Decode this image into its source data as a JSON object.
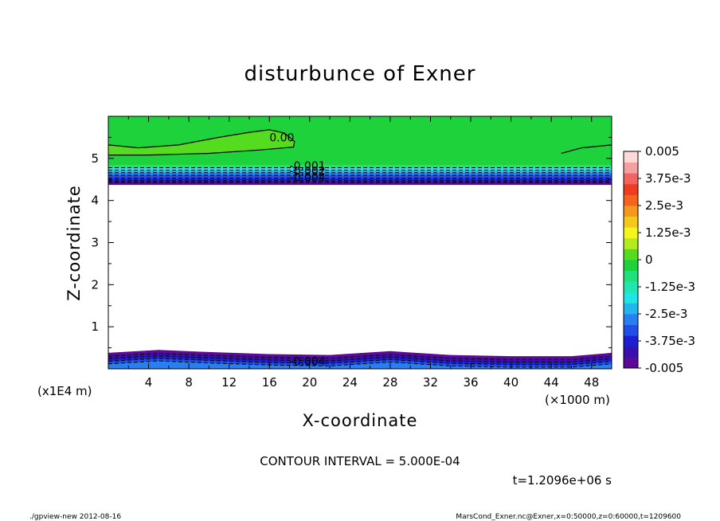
{
  "chart_data": {
    "type": "contour",
    "title": "disturbunce of Exner",
    "xlabel": "X-coordinate",
    "ylabel": "Z-coordinate",
    "x_unit_label": "(×1000 m)",
    "y_unit_label": "(x1E4 m)",
    "x_ticks": [
      "4",
      "8",
      "12",
      "16",
      "20",
      "24",
      "28",
      "32",
      "36",
      "40",
      "44",
      "48"
    ],
    "y_ticks": [
      "1",
      "2",
      "3",
      "4",
      "5"
    ],
    "xlim": [
      0,
      50
    ],
    "ylim": [
      0,
      6
    ],
    "contour_interval_text": "CONTOUR INTERVAL = 5.000E-04",
    "time_text": "t=1.2096e+06 s",
    "contour_labels": [
      {
        "text": "0.00",
        "x": 16,
        "z": 5.5
      },
      {
        "text": "-0.001",
        "x": 18,
        "z": 4.83
      },
      {
        "text": "-0.002",
        "x": 18,
        "z": 4.7
      },
      {
        "text": "-0.004",
        "x": 18,
        "z": 4.55
      },
      {
        "text": "-0.004",
        "x": 18,
        "z": 0.18
      }
    ],
    "colorbar": {
      "labels": [
        "0.005",
        "3.75e-3",
        "2.5e-3",
        "1.25e-3",
        "0",
        "-1.25e-3",
        "-2.5e-3",
        "-3.75e-3",
        "-0.005"
      ],
      "colors": [
        "#5a0a96",
        "#3a0fb0",
        "#1e1ed2",
        "#1f4fe6",
        "#2a7ff0",
        "#22b6ee",
        "#1ee6e6",
        "#20e6b0",
        "#20e07a",
        "#1ed23c",
        "#55dc1e",
        "#b4eb1e",
        "#f5f51e",
        "#f5c81e",
        "#f5961e",
        "#f5641e",
        "#f03c1e",
        "#f06464",
        "#f5a0a0",
        "#ffd8d8"
      ]
    },
    "top_band": [
      {
        "z": 4.83,
        "color": "#20e07a"
      },
      {
        "z": 4.78,
        "color": "#1ee6e6"
      },
      {
        "z": 4.72,
        "color": "#22b6ee"
      },
      {
        "z": 4.66,
        "color": "#2a7ff0"
      },
      {
        "z": 4.6,
        "color": "#1f4fe6"
      },
      {
        "z": 4.53,
        "color": "#1e1ed2"
      },
      {
        "z": 4.47,
        "color": "#3a0fb0"
      },
      {
        "z": 4.43,
        "color": "#5a0a96"
      }
    ],
    "bottom_band": [
      {
        "x": 0,
        "z": 0.38
      },
      {
        "x": 5,
        "z": 0.45
      },
      {
        "x": 10,
        "z": 0.4
      },
      {
        "x": 16,
        "z": 0.35
      },
      {
        "x": 22,
        "z": 0.33
      },
      {
        "x": 28,
        "z": 0.42
      },
      {
        "x": 34,
        "z": 0.33
      },
      {
        "x": 40,
        "z": 0.3
      },
      {
        "x": 46,
        "z": 0.3
      },
      {
        "x": 50,
        "z": 0.38
      }
    ],
    "zero_contours": [
      [
        {
          "x": 0,
          "z": 5.32
        },
        {
          "x": 3,
          "z": 5.25
        },
        {
          "x": 7,
          "z": 5.32
        },
        {
          "x": 11,
          "z": 5.5
        },
        {
          "x": 14,
          "z": 5.62
        },
        {
          "x": 16,
          "z": 5.68
        },
        {
          "x": 17.5,
          "z": 5.6
        },
        {
          "x": 18.5,
          "z": 5.4
        },
        {
          "x": 18.4,
          "z": 5.27
        },
        {
          "x": 15,
          "z": 5.2
        },
        {
          "x": 10,
          "z": 5.12
        },
        {
          "x": 4,
          "z": 5.08
        },
        {
          "x": 0,
          "z": 5.08
        }
      ],
      [
        {
          "x": 45,
          "z": 5.12
        },
        {
          "x": 47,
          "z": 5.25
        },
        {
          "x": 50,
          "z": 5.32
        }
      ]
    ]
  },
  "footer": {
    "left": "./gpview-new   2012-08-16",
    "right": "MarsCond_Exner.nc@Exner,x=0:50000,z=0:60000,t=1209600"
  }
}
